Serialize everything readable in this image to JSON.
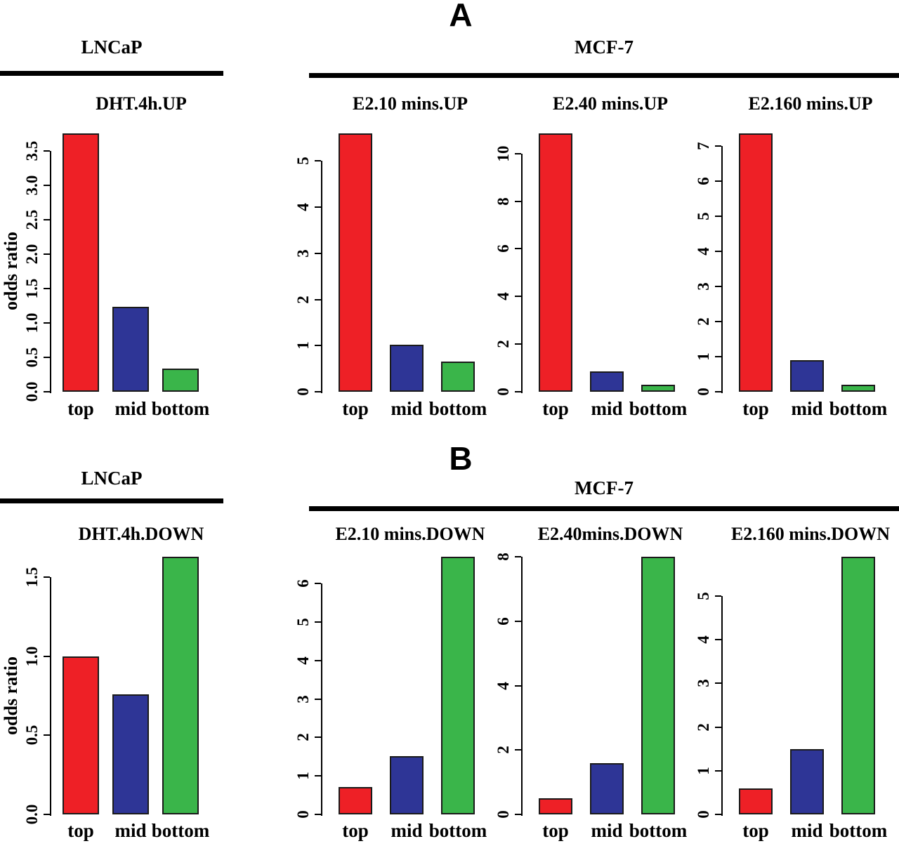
{
  "figure": {
    "panels": [
      {
        "label": "A",
        "groups": [
          {
            "name": "LNCaP"
          },
          {
            "name": "MCF-7"
          }
        ]
      },
      {
        "label": "B",
        "groups": [
          {
            "name": "LNCaP"
          },
          {
            "name": "MCF-7"
          }
        ]
      }
    ],
    "y_axis_label": "odds ratio",
    "bar_colors": [
      "#ee2026",
      "#2e3596",
      "#3ab54a"
    ],
    "bar_color_meaning": [
      "top",
      "mid",
      "bottom"
    ]
  },
  "chart_data": [
    {
      "type": "bar",
      "panel": "A",
      "group": "LNCaP",
      "title": "DHT.4h.UP",
      "ylabel": "odds ratio",
      "categories": [
        "top",
        "mid",
        "bottom"
      ],
      "values": [
        3.75,
        1.23,
        0.34
      ],
      "ylim": [
        0,
        3.5
      ],
      "ytick_step": 0.5,
      "tick_decimals": 1
    },
    {
      "type": "bar",
      "panel": "A",
      "group": "MCF-7",
      "title": "E2.10 mins.UP",
      "categories": [
        "top",
        "mid",
        "bottom"
      ],
      "values": [
        5.6,
        1.02,
        0.65
      ],
      "ylim": [
        0,
        5
      ],
      "ytick_step": 1,
      "tick_decimals": 0
    },
    {
      "type": "bar",
      "panel": "A",
      "group": "MCF-7",
      "title": "E2.40 mins.UP",
      "categories": [
        "top",
        "mid",
        "bottom"
      ],
      "values": [
        10.85,
        0.85,
        0.3
      ],
      "ylim": [
        0,
        10
      ],
      "ytick_step": 2,
      "tick_decimals": 0
    },
    {
      "type": "bar",
      "panel": "A",
      "group": "MCF-7",
      "title": "E2.160 mins.UP",
      "categories": [
        "top",
        "mid",
        "bottom"
      ],
      "values": [
        7.35,
        0.9,
        0.2
      ],
      "ylim": [
        0,
        7
      ],
      "ytick_step": 1,
      "tick_decimals": 0
    },
    {
      "type": "bar",
      "panel": "B",
      "group": "LNCaP",
      "title": "DHT.4h.DOWN",
      "ylabel": "odds ratio",
      "categories": [
        "top",
        "mid",
        "bottom"
      ],
      "values": [
        1.0,
        0.76,
        1.63
      ],
      "ylim": [
        0,
        1.5
      ],
      "ytick_step": 0.5,
      "tick_decimals": 1
    },
    {
      "type": "bar",
      "panel": "B",
      "group": "MCF-7",
      "title": "E2.10 mins.DOWN",
      "categories": [
        "top",
        "mid",
        "bottom"
      ],
      "values": [
        0.72,
        1.52,
        6.7
      ],
      "ylim": [
        0,
        6
      ],
      "ytick_step": 1,
      "tick_decimals": 0
    },
    {
      "type": "bar",
      "panel": "B",
      "group": "MCF-7",
      "title": "E2.40mins.DOWN",
      "categories": [
        "top",
        "mid",
        "bottom"
      ],
      "values": [
        0.5,
        1.6,
        8.0
      ],
      "ylim": [
        0,
        8
      ],
      "ytick_step": 2,
      "tick_decimals": 0
    },
    {
      "type": "bar",
      "panel": "B",
      "group": "MCF-7",
      "title": "E2.160 mins.DOWN",
      "categories": [
        "top",
        "mid",
        "bottom"
      ],
      "values": [
        0.6,
        1.5,
        5.9
      ],
      "ylim": [
        0,
        5
      ],
      "ytick_step": 1,
      "tick_decimals": 0
    }
  ]
}
